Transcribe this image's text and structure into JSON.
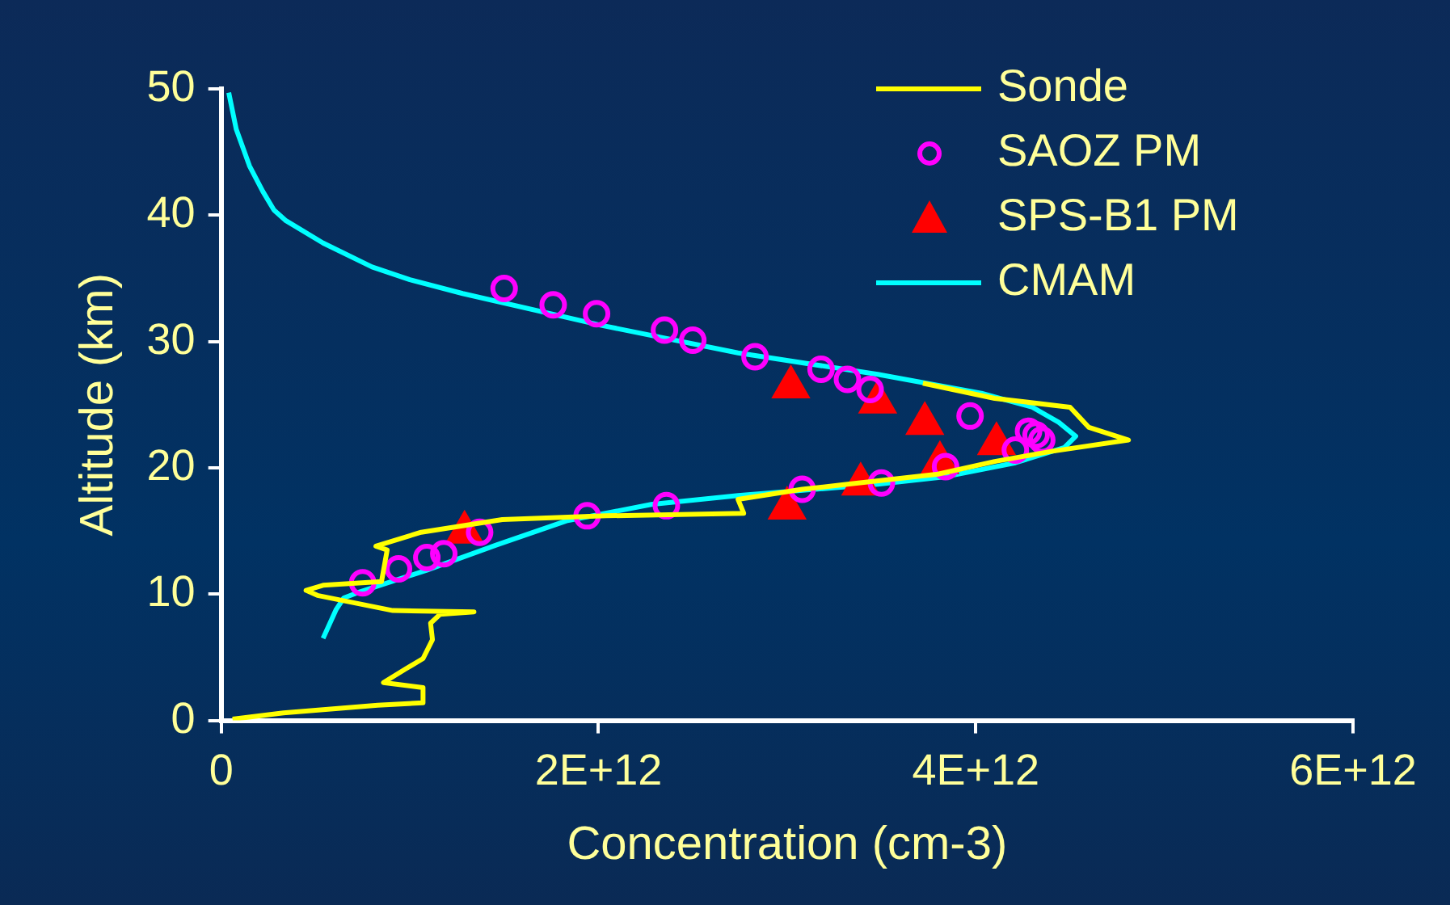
{
  "chart_data": {
    "type": "line",
    "xlabel": "Concentration (cm-3)",
    "ylabel": "Altitude (km)",
    "xlim": [
      0,
      6000000000000
    ],
    "xticks": [
      0,
      {
        "value": 2000000000000,
        "label": "2E+12"
      },
      {
        "value": 4000000000000,
        "label": "4E+12"
      },
      {
        "value": 6000000000000,
        "label": "6E+12"
      }
    ],
    "ylim": [
      0,
      50
    ],
    "yticks": [
      0,
      10,
      20,
      30,
      40,
      50
    ],
    "grid": false,
    "legend": "top right",
    "series": [
      {
        "name": "Sonde",
        "type": "line",
        "color": "#ffff00",
        "marker": "none",
        "x": [
          60000000000.0,
          330000000000.0,
          830000000000.0,
          1070000000000.0,
          1070000000000.0,
          860000000000.0,
          980000000000.0,
          1070000000000.0,
          1120000000000.0,
          1110000000000.0,
          1160000000000.0,
          1340000000000.0,
          910000000000.0,
          510000000000.0,
          450000000000.0,
          540000000000.0,
          850000000000.0,
          880000000000.0,
          820000000000.0,
          1060000000000.0,
          1490000000000.0,
          2040000000000.0,
          2770000000000.0,
          2740000000000.0,
          3080000000000.0,
          3320000000000.0,
          3800000000000.0,
          4100000000000.0,
          4400000000000.0,
          4810000000000.0,
          4600000000000.0,
          4500000000000.0,
          4100000000000.0,
          3720000000000.0
        ],
        "values": [
          0.1,
          0.6,
          1.2,
          1.4,
          2.6,
          3.0,
          4.1,
          4.9,
          6.4,
          7.7,
          8.4,
          8.6,
          8.7,
          9.9,
          10.3,
          10.7,
          11.0,
          13.5,
          13.8,
          14.9,
          15.9,
          16.2,
          16.4,
          17.5,
          18.3,
          18.7,
          19.5,
          20.5,
          21.3,
          22.2,
          23.2,
          24.8,
          25.5,
          26.7
        ]
      },
      {
        "name": "SAOZ PM",
        "type": "scatter",
        "color": "#ff00ff",
        "marker": "circle",
        "x": [
          1500000000000.0,
          1760000000000.0,
          1990000000000.0,
          2350000000000.0,
          2500000000000.0,
          2830000000000.0,
          3180000000000.0,
          3320000000000.0,
          3440000000000.0,
          3970000000000.0,
          4280000000000.0,
          4320000000000.0,
          4350000000000.0,
          750000000000.0,
          940000000000.0,
          1090000000000.0,
          1180000000000.0,
          1370000000000.0,
          1940000000000.0,
          2360000000000.0,
          3080000000000.0,
          3500000000000.0,
          3840000000000.0,
          4210000000000.0
        ],
        "values": [
          34.2,
          32.9,
          32.2,
          30.9,
          30.1,
          28.8,
          27.8,
          27.0,
          26.2,
          24.1,
          22.9,
          22.6,
          22.2,
          10.9,
          12.0,
          12.9,
          13.2,
          14.9,
          16.2,
          17.0,
          18.3,
          18.8,
          20.1,
          21.4
        ]
      },
      {
        "name": "SPS-B1 PM",
        "type": "scatter",
        "color": "#ff0000",
        "marker": "triangle",
        "x": [
          3020000000000.0,
          3480000000000.0,
          3730000000000.0,
          4110000000000.0,
          3810000000000.0,
          3390000000000.0,
          3000000000000.0,
          1290000000000.0
        ],
        "values": [
          26.4,
          25.2,
          23.5,
          21.9,
          20.4,
          18.7,
          16.8,
          14.9
        ]
      },
      {
        "name": "CMAM",
        "type": "line",
        "color": "#00ffff",
        "marker": "none",
        "x": [
          40000000000.0,
          80000000000.0,
          150000000000.0,
          220000000000.0,
          280000000000.0,
          340000000000.0,
          540000000000.0,
          800000000000.0,
          1000000000000.0,
          1280000000000.0,
          2010000000000.0,
          2740000000000.0,
          3480000000000.0,
          4030000000000.0,
          4300000000000.0,
          4440000000000.0,
          4530000000000.0,
          4470000000000.0,
          4210000000000.0,
          3840000000000.0,
          3480000000000.0,
          2740000000000.0,
          2280000000000.0,
          1830000000000.0,
          1460000000000.0,
          1090000000000.0,
          720000000000.0,
          650000000000.0,
          610000000000.0,
          540000000000.0
        ],
        "values": [
          49.7,
          46.8,
          43.9,
          41.9,
          40.4,
          39.6,
          37.8,
          35.9,
          34.9,
          33.8,
          31.3,
          29.1,
          27.4,
          25.9,
          24.8,
          23.6,
          22.5,
          21.6,
          20.4,
          19.3,
          18.7,
          17.8,
          17.1,
          15.8,
          13.9,
          11.9,
          10.1,
          9.7,
          8.8,
          6.5
        ]
      }
    ]
  }
}
